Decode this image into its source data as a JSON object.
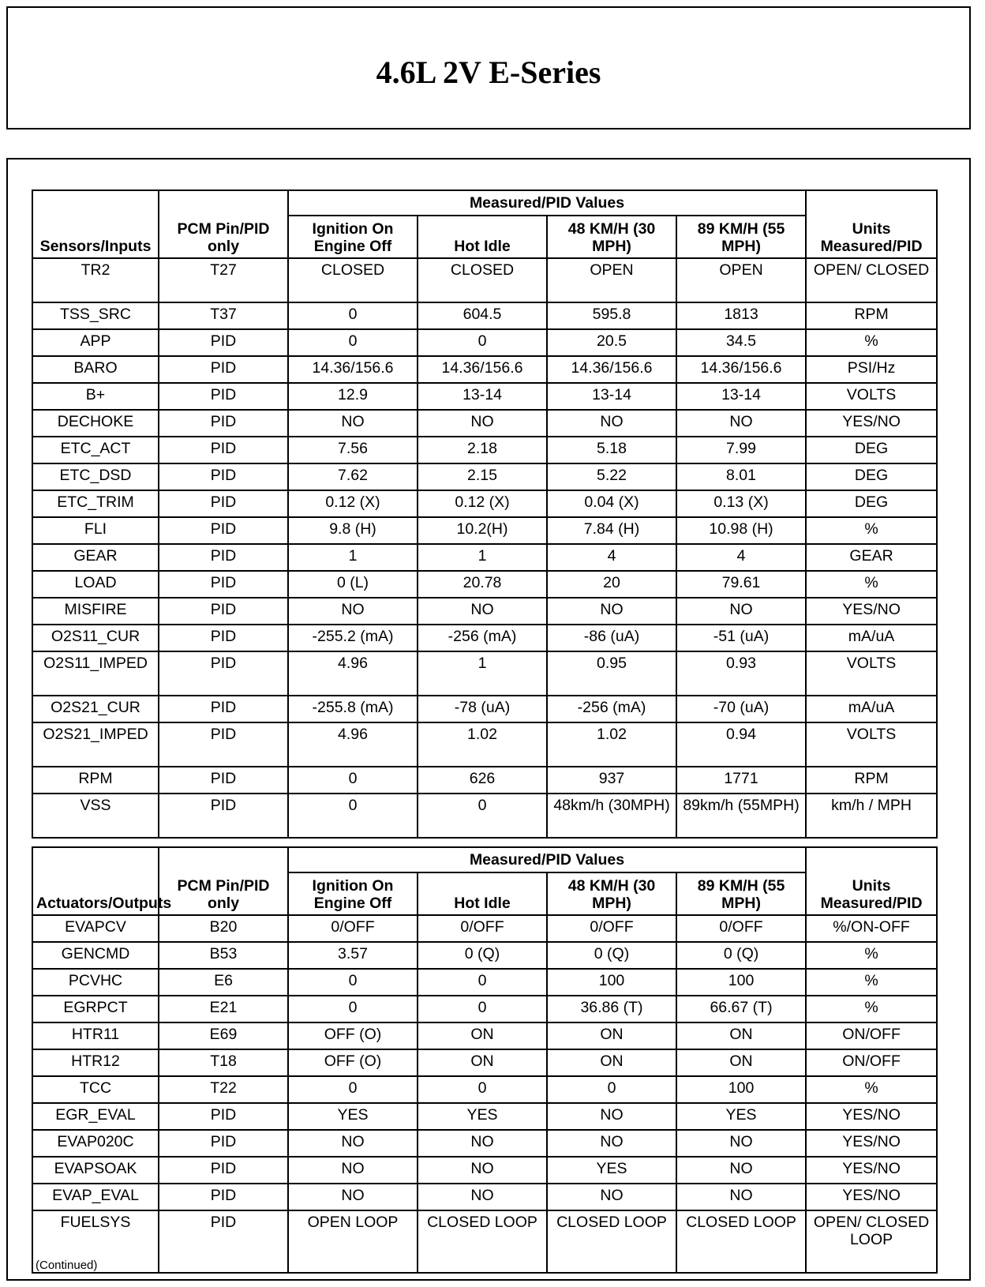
{
  "title": "4.6L 2V E-Series",
  "header": {
    "group": "Measured/PID Values",
    "pin": "PCM Pin/PID only",
    "ign": "Ignition On Engine Off",
    "idle": "Hot Idle",
    "s48": "48 KM/H (30 MPH)",
    "s89": "89 KM/H (55 MPH)",
    "units": "Units Measured/PID"
  },
  "sensors": {
    "first_col": "Sensors/Inputs",
    "rows": [
      [
        "TR2",
        "T27",
        "CLOSED",
        "CLOSED",
        "OPEN",
        "OPEN",
        "OPEN/ CLOSED"
      ],
      [
        "TSS_SRC",
        "T37",
        "0",
        "604.5",
        "595.8",
        "1813",
        "RPM"
      ],
      [
        "APP",
        "PID",
        "0",
        "0",
        "20.5",
        "34.5",
        "%"
      ],
      [
        "BARO",
        "PID",
        "14.36/156.6",
        "14.36/156.6",
        "14.36/156.6",
        "14.36/156.6",
        "PSI/Hz"
      ],
      [
        "B+",
        "PID",
        "12.9",
        "13-14",
        "13-14",
        "13-14",
        "VOLTS"
      ],
      [
        "DECHOKE",
        "PID",
        "NO",
        "NO",
        "NO",
        "NO",
        "YES/NO"
      ],
      [
        "ETC_ACT",
        "PID",
        "7.56",
        "2.18",
        "5.18",
        "7.99",
        "DEG"
      ],
      [
        "ETC_DSD",
        "PID",
        "7.62",
        "2.15",
        "5.22",
        "8.01",
        "DEG"
      ],
      [
        "ETC_TRIM",
        "PID",
        "0.12 (X)",
        "0.12 (X)",
        "0.04 (X)",
        "0.13 (X)",
        "DEG"
      ],
      [
        "FLI",
        "PID",
        "9.8 (H)",
        "10.2(H)",
        "7.84 (H)",
        "10.98 (H)",
        "%"
      ],
      [
        "GEAR",
        "PID",
        "1",
        "1",
        "4",
        "4",
        "GEAR"
      ],
      [
        "LOAD",
        "PID",
        "0 (L)",
        "20.78",
        "20",
        "79.61",
        "%"
      ],
      [
        "MISFIRE",
        "PID",
        "NO",
        "NO",
        "NO",
        "NO",
        "YES/NO"
      ],
      [
        "O2S11_CUR",
        "PID",
        "-255.2 (mA)",
        "-256 (mA)",
        "-86 (uA)",
        "-51 (uA)",
        "mA/uA"
      ],
      [
        "O2S11_IMPED",
        "PID",
        "4.96",
        "1",
        "0.95",
        "0.93",
        "VOLTS"
      ],
      [
        "O2S21_CUR",
        "PID",
        "-255.8 (mA)",
        "-78 (uA)",
        "-256 (mA)",
        "-70 (uA)",
        "mA/uA"
      ],
      [
        "O2S21_IMPED",
        "PID",
        "4.96",
        "1.02",
        "1.02",
        "0.94",
        "VOLTS"
      ],
      [
        "RPM",
        "PID",
        "0",
        "626",
        "937",
        "1771",
        "RPM"
      ],
      [
        "VSS",
        "PID",
        "0",
        "0",
        "48km/h (30MPH)",
        "89km/h (55MPH)",
        "km/h / MPH"
      ]
    ]
  },
  "actuators": {
    "first_col": "Actuators/Outputs",
    "rows": [
      [
        "EVAPCV",
        "B20",
        "0/OFF",
        "0/OFF",
        "0/OFF",
        "0/OFF",
        "%/ON-OFF"
      ],
      [
        "GENCMD",
        "B53",
        "3.57",
        "0 (Q)",
        "0 (Q)",
        "0 (Q)",
        "%"
      ],
      [
        "PCVHC",
        "E6",
        "0",
        "0",
        "100",
        "100",
        "%"
      ],
      [
        "EGRPCT",
        "E21",
        "0",
        "0",
        "36.86 (T)",
        "66.67 (T)",
        "%"
      ],
      [
        "HTR11",
        "E69",
        "OFF (O)",
        "ON",
        "ON",
        "ON",
        "ON/OFF"
      ],
      [
        "HTR12",
        "T18",
        "OFF (O)",
        "ON",
        "ON",
        "ON",
        "ON/OFF"
      ],
      [
        "TCC",
        "T22",
        "0",
        "0",
        "0",
        "100",
        "%"
      ],
      [
        "EGR_EVAL",
        "PID",
        "YES",
        "YES",
        "NO",
        "YES",
        "YES/NO"
      ],
      [
        "EVAP020C",
        "PID",
        "NO",
        "NO",
        "NO",
        "NO",
        "YES/NO"
      ],
      [
        "EVAPSOAK",
        "PID",
        "NO",
        "NO",
        "YES",
        "NO",
        "YES/NO"
      ],
      [
        "EVAP_EVAL",
        "PID",
        "NO",
        "NO",
        "NO",
        "NO",
        "YES/NO"
      ],
      [
        "FUELSYS",
        "PID",
        "OPEN LOOP",
        "CLOSED LOOP",
        "CLOSED LOOP",
        "CLOSED LOOP",
        "OPEN/ CLOSED LOOP"
      ]
    ]
  },
  "footer": "(Continued)"
}
